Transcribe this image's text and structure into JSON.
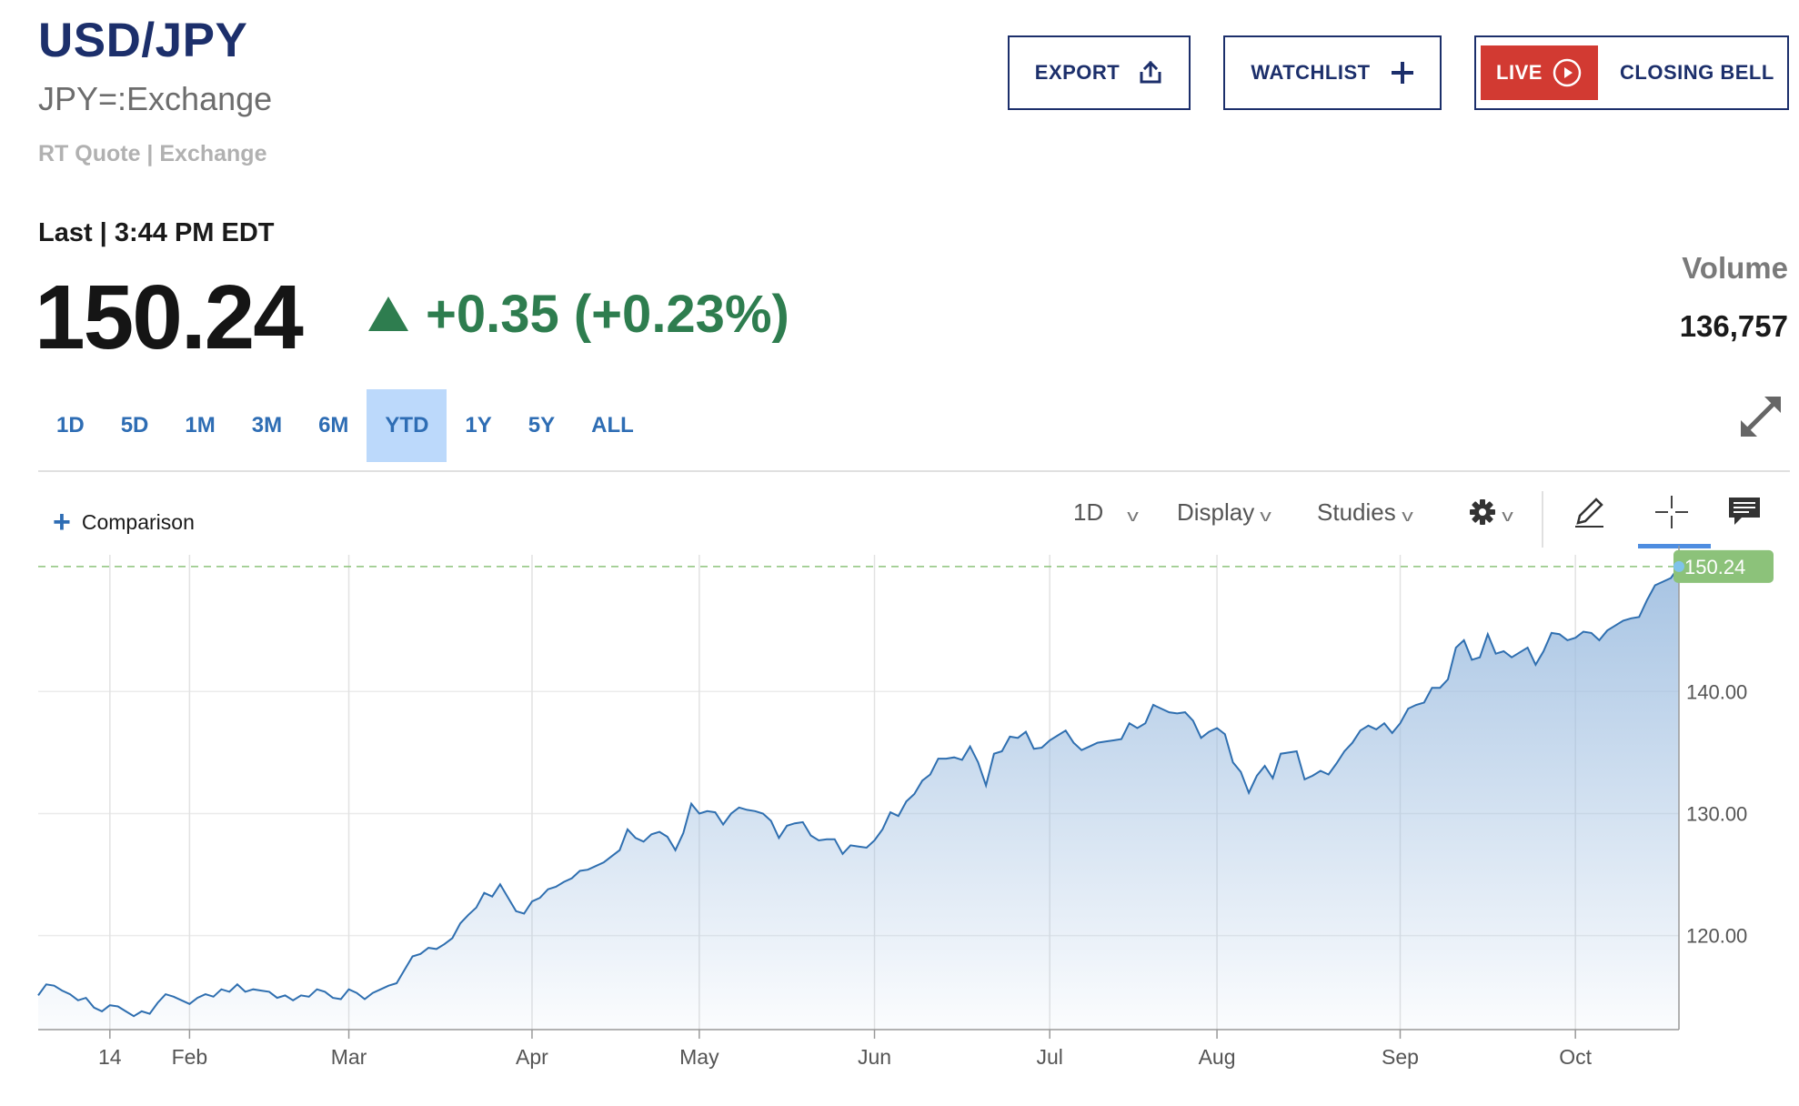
{
  "header": {
    "symbol": "USD/JPY",
    "exchange_code": "JPY=:Exchange",
    "quote_type": "RT Quote | Exchange",
    "last_label": "Last | 3:44 PM EDT",
    "last_price": "150.24",
    "change": "+0.35 (+0.23%)",
    "volume_label": "Volume",
    "volume_value": "136,757"
  },
  "actions": {
    "export_label": "EXPORT",
    "watchlist_label": "WATCHLIST",
    "live_label": "LIVE",
    "closing_bell_label": "CLOSING BELL"
  },
  "range_tabs": [
    {
      "label": "1D"
    },
    {
      "label": "5D"
    },
    {
      "label": "1M"
    },
    {
      "label": "3M"
    },
    {
      "label": "6M"
    },
    {
      "label": "YTD",
      "active": true
    },
    {
      "label": "1Y"
    },
    {
      "label": "5Y"
    },
    {
      "label": "ALL"
    }
  ],
  "toolbar": {
    "comparison_label": "Comparison",
    "interval_label": "1D",
    "display_label": "Display",
    "studies_label": "Studies"
  },
  "colors": {
    "brand_navy": "#1c2f6b",
    "positive_green": "#2e7d4f",
    "live_red": "#d23a32",
    "line_blue": "#2f6fb0",
    "price_tag_green": "#8cc27a"
  },
  "icons": {
    "export": "share-upload-icon",
    "watchlist": "plus-icon",
    "live": "play-circle-icon",
    "expand": "expand-arrows-icon",
    "settings": "gear-icon",
    "draw": "pencil-icon",
    "crosshair": "crosshair-icon",
    "comment": "comment-icon"
  },
  "chart_data": {
    "type": "area",
    "x_tick_labels": [
      "14",
      "Feb",
      "Mar",
      "Apr",
      "May",
      "Jun",
      "Jul",
      "Aug",
      "Sep",
      "Oct"
    ],
    "y_tick_labels": [
      "140.00",
      "130.00",
      "120.00"
    ],
    "y_ticks": [
      140,
      130,
      120
    ],
    "ylim": [
      112.3,
      150.9
    ],
    "current_value_label": "150.24",
    "current_value": 150.24,
    "grid": true,
    "series": [
      {
        "values": [
          115.1,
          116.0,
          115.9,
          115.5,
          115.2,
          114.7,
          114.9,
          114.1,
          113.8,
          114.3,
          114.2,
          113.8,
          113.4,
          113.8,
          113.6,
          114.5,
          115.2,
          115.0,
          114.7,
          114.4,
          114.9,
          115.2,
          115.0,
          115.6,
          115.4,
          116.0,
          115.4,
          115.6,
          115.5,
          115.4,
          114.9,
          115.1,
          114.7,
          115.1,
          115.0,
          115.6,
          115.4,
          114.9,
          114.8,
          115.6,
          115.3,
          114.8,
          115.3,
          115.6,
          115.9,
          116.1,
          117.2,
          118.3,
          118.5,
          119.0,
          118.9,
          119.3,
          119.8,
          121.0,
          121.7,
          122.3,
          123.5,
          123.2,
          124.2,
          123.1,
          122.0,
          121.8,
          122.8,
          123.1,
          123.8,
          124.0,
          124.4,
          124.7,
          125.3,
          125.4,
          125.7,
          126.0,
          126.5,
          127.0,
          128.7,
          128.0,
          127.7,
          128.3,
          128.5,
          128.1,
          127.0,
          128.4,
          130.8,
          130.0,
          130.2,
          130.1,
          129.1,
          130.0,
          130.5,
          130.3,
          130.2,
          130.0,
          129.4,
          128.0,
          129.0,
          129.2,
          129.3,
          128.2,
          127.8,
          127.9,
          127.9,
          126.7,
          127.4,
          127.3,
          127.2,
          127.8,
          128.7,
          130.1,
          129.8,
          131.0,
          131.6,
          132.7,
          133.2,
          134.5,
          134.5,
          134.6,
          134.4,
          135.5,
          134.2,
          132.3,
          134.9,
          135.1,
          136.3,
          136.2,
          136.7,
          135.3,
          135.4,
          136.0,
          136.4,
          136.8,
          135.8,
          135.2,
          135.5,
          135.8,
          135.9,
          136.0,
          136.1,
          137.4,
          137.0,
          137.4,
          138.9,
          138.6,
          138.3,
          138.2,
          138.3,
          137.6,
          136.2,
          136.7,
          137.0,
          136.5,
          134.2,
          133.4,
          131.7,
          133.1,
          133.9,
          132.9,
          134.9,
          135.0,
          135.1,
          132.8,
          133.1,
          133.5,
          133.2,
          134.1,
          135.1,
          135.8,
          136.8,
          137.2,
          136.9,
          137.4,
          136.6,
          137.4,
          138.6,
          138.9,
          139.1,
          140.3,
          140.3,
          141.0,
          143.6,
          144.2,
          142.6,
          142.8,
          144.7,
          143.1,
          143.3,
          142.8,
          143.2,
          143.6,
          142.2,
          143.3,
          144.8,
          144.7,
          144.2,
          144.4,
          144.9,
          144.8,
          144.2,
          145.0,
          145.4,
          145.8,
          146.0,
          146.1,
          147.5,
          148.7,
          149.0,
          149.3,
          150.24
        ]
      }
    ]
  }
}
